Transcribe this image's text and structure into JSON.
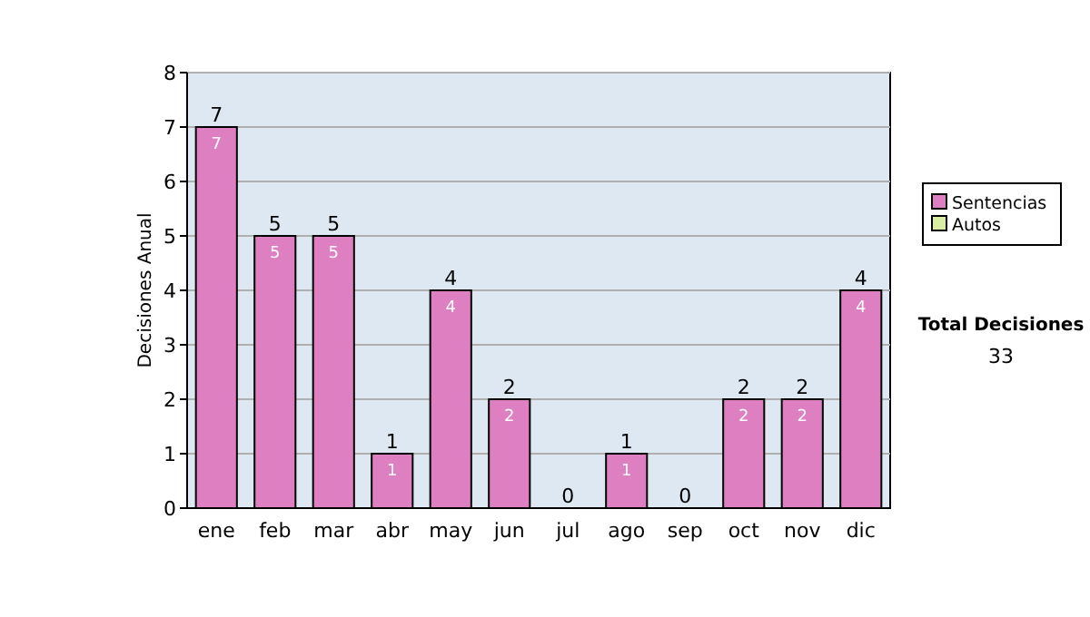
{
  "chart_data": {
    "type": "bar",
    "stacked": true,
    "ylabel": "Decisiones Anual",
    "categories": [
      "ene",
      "feb",
      "mar",
      "abr",
      "may",
      "jun",
      "jul",
      "ago",
      "sep",
      "oct",
      "nov",
      "dic"
    ],
    "series": [
      {
        "name": "Sentencias",
        "color": "#dd7fc0",
        "values": [
          7,
          5,
          5,
          1,
          4,
          2,
          0,
          1,
          0,
          2,
          2,
          4
        ],
        "value_labels": [
          "7",
          "5",
          "5",
          "1",
          "4",
          "2",
          null,
          "1",
          null,
          "2",
          "2",
          "4"
        ]
      },
      {
        "name": "Autos",
        "color": "#d9eea0",
        "values": [
          0,
          0,
          0,
          0,
          0,
          0,
          0,
          0,
          0,
          0,
          0,
          0
        ]
      }
    ],
    "totals": [
      "7",
      "5",
      "5",
      "1",
      "4",
      "2",
      "0",
      "1",
      "0",
      "2",
      "2",
      "4"
    ],
    "ylim": [
      0,
      8
    ],
    "yticks": [
      0,
      1,
      2,
      3,
      4,
      5,
      6,
      7,
      8
    ],
    "grid": "y",
    "legend": "right",
    "annotations": [
      "Total Decisiones",
      "33"
    ]
  }
}
